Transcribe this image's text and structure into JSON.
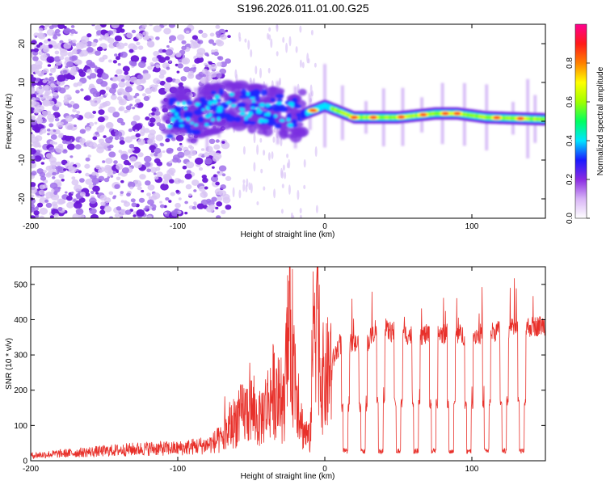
{
  "title": "S196.2026.011.01.00.G25",
  "colors": {
    "snr_line": "#e8302a",
    "axis": "#000000"
  },
  "chart_data": [
    {
      "type": "heatmap",
      "xlabel": "Height of straight line (km)",
      "ylabel": "Frequency (Hz)",
      "xlim": [
        -200,
        150
      ],
      "ylim": [
        -25,
        25
      ],
      "xticks": [
        -200,
        -100,
        0,
        100
      ],
      "yticks": [
        -20,
        -10,
        0,
        10,
        20
      ],
      "colorbar": {
        "label": "Normalized spectral amplitude",
        "range": [
          0,
          1
        ],
        "ticks": [
          0.0,
          0.2,
          0.4,
          0.6,
          0.8
        ],
        "tick_labels": [
          "0.0",
          "0.2",
          "0.4",
          "0.6",
          "0.8"
        ],
        "colormap": [
          "#ffffff",
          "#d8b4f6",
          "#8a2be2",
          "#1a1aff",
          "#00e5ff",
          "#00ff60",
          "#a0ff00",
          "#ffff00",
          "#ff8000",
          "#ff1a1a",
          "#ff0090"
        ]
      },
      "signal_track": {
        "description_points": [
          {
            "x": -105,
            "y": 3
          },
          {
            "x": -90,
            "y": 1
          },
          {
            "x": -65,
            "y": 5
          },
          {
            "x": -40,
            "y": 3
          },
          {
            "x": -20,
            "y": 1
          },
          {
            "x": 0,
            "y": 4
          },
          {
            "x": 20,
            "y": 1
          },
          {
            "x": 50,
            "y": 1
          },
          {
            "x": 75,
            "y": 2
          },
          {
            "x": 90,
            "y": 2
          },
          {
            "x": 110,
            "y": 1
          },
          {
            "x": 150,
            "y": 0.5
          }
        ]
      }
    },
    {
      "type": "line",
      "xlabel": "Height of straight line (km)",
      "ylabel": "SNR (10 * v/v)",
      "xlim": [
        -200,
        150
      ],
      "ylim": [
        0,
        550
      ],
      "xticks": [
        -200,
        -100,
        0,
        100
      ],
      "yticks": [
        0,
        100,
        200,
        300,
        400,
        500
      ],
      "series": [
        {
          "name": "SNR",
          "points": [
            [
              -200,
              15
            ],
            [
              -180,
              20
            ],
            [
              -160,
              25
            ],
            [
              -140,
              30
            ],
            [
              -120,
              35
            ],
            [
              -100,
              35
            ],
            [
              -80,
              45
            ],
            [
              -70,
              60
            ],
            [
              -60,
              120
            ],
            [
              -50,
              150
            ],
            [
              -45,
              110
            ],
            [
              -35,
              200
            ],
            [
              -28,
              150
            ],
            [
              -24,
              400
            ],
            [
              -20,
              250
            ],
            [
              -15,
              90
            ],
            [
              -10,
              60
            ],
            [
              -7,
              470
            ],
            [
              -5,
              540
            ],
            [
              -3,
              250
            ],
            [
              0,
              220
            ],
            [
              5,
              280
            ],
            [
              10,
              330
            ],
            [
              20,
              330
            ],
            [
              30,
              340
            ],
            [
              35,
              380
            ],
            [
              40,
              370
            ],
            [
              60,
              355
            ],
            [
              80,
              360
            ],
            [
              100,
              355
            ],
            [
              120,
              370
            ],
            [
              140,
              380
            ],
            [
              150,
              385
            ]
          ],
          "dips_at_x": [
            14,
            26,
            38,
            50,
            62,
            74,
            86,
            98,
            110,
            122,
            134
          ]
        }
      ]
    }
  ]
}
